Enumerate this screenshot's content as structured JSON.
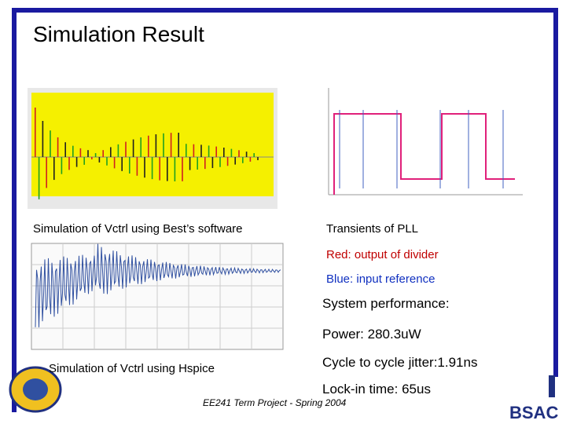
{
  "title": "Simulation Result",
  "figures": {
    "best_caption": "Simulation of Vctrl using Best’s software",
    "pll_caption": "Transients of PLL",
    "red_note": "Red: output of divider",
    "blue_note": "Blue:  input reference",
    "hspice_caption": "Simulation of Vctrl using Hspice"
  },
  "performance": {
    "heading": "System performance:",
    "items": [
      "Power: 280.3uW",
      "Cycle to cycle jitter:1.91ns",
      "Lock-in time: 65us"
    ]
  },
  "footer": {
    "text": "EE241 Term Project - Spring 2004",
    "logo": "BSAC"
  }
}
